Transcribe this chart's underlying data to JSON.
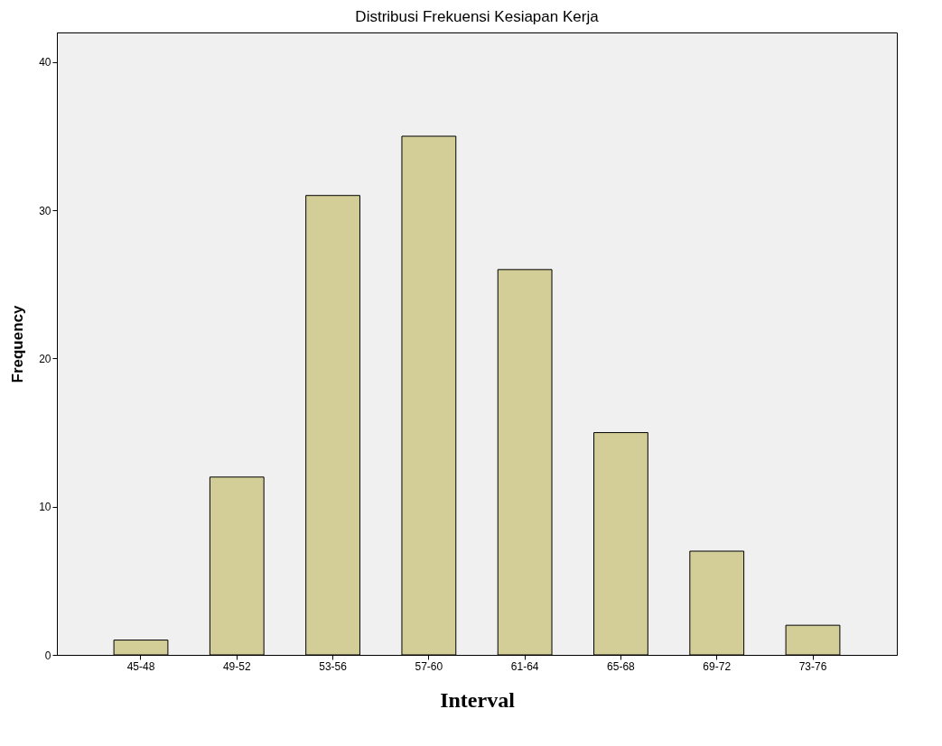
{
  "chart_data": {
    "type": "bar",
    "title": "Distribusi Frekuensi Kesiapan Kerja",
    "xlabel": "Interval",
    "ylabel": "Frequency",
    "categories": [
      "45-48",
      "49-52",
      "53-56",
      "57-60",
      "61-64",
      "65-68",
      "69-72",
      "73-76"
    ],
    "values": [
      1,
      12,
      31,
      35,
      26,
      15,
      7,
      2
    ],
    "color": "#d3ce97",
    "ylim": [
      0,
      42
    ],
    "yticks": [
      0,
      10,
      20,
      30,
      40
    ],
    "grid": false
  }
}
